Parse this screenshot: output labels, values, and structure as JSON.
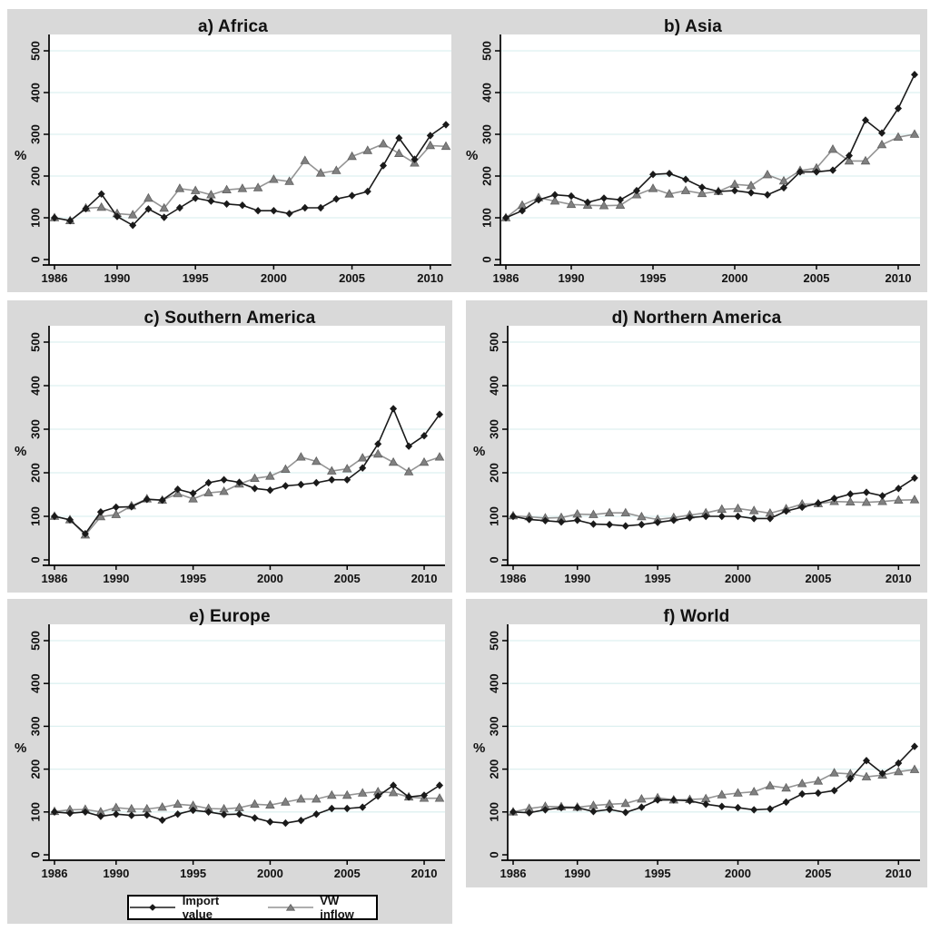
{
  "figure": {
    "ylabel": "%",
    "legend": {
      "items": [
        {
          "label": "Import value",
          "marker": "diamond"
        },
        {
          "label": "VW inflow",
          "marker": "triangle"
        }
      ]
    }
  },
  "style": {
    "page_bg": "#ffffff",
    "panel_bg": "#d9d9d9",
    "plot_bg": "#ffffff",
    "grid_color": "#ddf0f0",
    "axis_color": "#000000",
    "text_color": "#111111",
    "import_color": "#1a1a1a",
    "vw_line_color": "#949494",
    "vw_marker_color": "#808080",
    "vw_marker_edge": "#5f5f5f"
  },
  "axes": {
    "ylabel": "%",
    "ylim": [
      0,
      500
    ],
    "yticks": [
      0,
      100,
      200,
      300,
      400,
      500
    ],
    "xticks": [
      1986,
      1990,
      1995,
      2000,
      2005,
      2010
    ],
    "grid": true
  },
  "years": [
    1986,
    1987,
    1988,
    1989,
    1990,
    1991,
    1992,
    1993,
    1994,
    1995,
    1996,
    1997,
    1998,
    1999,
    2000,
    2001,
    2002,
    2003,
    2004,
    2005,
    2006,
    2007,
    2008,
    2009,
    2010,
    2011
  ],
  "chart_data": [
    {
      "type": "line",
      "title": "a) Africa",
      "xlabel": "",
      "ylabel": "%",
      "series": [
        {
          "name": "Import value",
          "values": [
            100,
            93,
            122,
            157,
            103,
            82,
            121,
            101,
            124,
            147,
            140,
            133,
            130,
            117,
            117,
            110,
            124,
            124,
            145,
            153,
            163,
            225,
            291,
            240,
            297,
            323
          ]
        },
        {
          "name": "VW inflow",
          "values": [
            100,
            93,
            123,
            125,
            110,
            107,
            147,
            123,
            170,
            165,
            155,
            167,
            170,
            172,
            192,
            187,
            237,
            207,
            213,
            247,
            261,
            277,
            254,
            231,
            273,
            271
          ]
        }
      ]
    },
    {
      "type": "line",
      "title": "b) Asia",
      "xlabel": "",
      "ylabel": "%",
      "series": [
        {
          "name": "Import value",
          "values": [
            100,
            117,
            143,
            155,
            152,
            137,
            147,
            143,
            165,
            204,
            206,
            192,
            173,
            163,
            165,
            160,
            155,
            172,
            210,
            210,
            214,
            249,
            334,
            303,
            362,
            443
          ]
        },
        {
          "name": "VW inflow",
          "values": [
            100,
            130,
            148,
            140,
            132,
            130,
            129,
            130,
            155,
            170,
            157,
            165,
            158,
            163,
            180,
            177,
            203,
            188,
            213,
            219,
            264,
            236,
            236,
            275,
            293,
            300
          ]
        }
      ]
    },
    {
      "type": "line",
      "title": "c) Southern America",
      "xlabel": "",
      "ylabel": "%",
      "series": [
        {
          "name": "Import value",
          "values": [
            100,
            92,
            60,
            110,
            121,
            122,
            139,
            137,
            162,
            153,
            177,
            184,
            178,
            164,
            160,
            170,
            173,
            177,
            184,
            184,
            211,
            266,
            347,
            261,
            285,
            334
          ]
        },
        {
          "name": "VW inflow",
          "values": [
            100,
            92,
            57,
            99,
            104,
            124,
            140,
            137,
            152,
            140,
            154,
            157,
            174,
            187,
            192,
            208,
            236,
            226,
            204,
            209,
            234,
            243,
            224,
            202,
            224,
            236
          ]
        }
      ]
    },
    {
      "type": "line",
      "title": "d) Northern America",
      "xlabel": "",
      "ylabel": "%",
      "series": [
        {
          "name": "Import value",
          "values": [
            100,
            93,
            90,
            87,
            91,
            82,
            81,
            78,
            81,
            86,
            91,
            97,
            100,
            100,
            100,
            95,
            95,
            112,
            121,
            130,
            141,
            151,
            155,
            147,
            164,
            188
          ]
        },
        {
          "name": "VW inflow",
          "values": [
            101,
            99,
            96,
            97,
            105,
            104,
            108,
            108,
            99,
            93,
            97,
            103,
            108,
            116,
            118,
            113,
            107,
            117,
            128,
            129,
            134,
            133,
            132,
            134,
            137,
            138
          ]
        }
      ]
    },
    {
      "type": "line",
      "title": "e) Europe",
      "xlabel": "",
      "ylabel": "%",
      "series": [
        {
          "name": "Import value",
          "values": [
            100,
            97,
            100,
            90,
            95,
            92,
            93,
            81,
            95,
            104,
            100,
            94,
            95,
            86,
            77,
            74,
            80,
            95,
            108,
            108,
            111,
            137,
            162,
            135,
            139,
            162
          ]
        },
        {
          "name": "VW inflow",
          "values": [
            101,
            105,
            106,
            100,
            110,
            107,
            107,
            111,
            118,
            115,
            108,
            107,
            110,
            118,
            116,
            123,
            130,
            130,
            139,
            139,
            144,
            147,
            145,
            135,
            132,
            132
          ]
        }
      ]
    },
    {
      "type": "line",
      "title": "f) World",
      "xlabel": "",
      "ylabel": "%",
      "series": [
        {
          "name": "Import value",
          "values": [
            100,
            98,
            105,
            110,
            110,
            101,
            106,
            99,
            111,
            128,
            128,
            126,
            118,
            113,
            110,
            105,
            107,
            123,
            142,
            144,
            150,
            178,
            220,
            190,
            214,
            253
          ]
        },
        {
          "name": "VW inflow",
          "values": [
            100,
            108,
            113,
            112,
            111,
            115,
            118,
            120,
            130,
            133,
            128,
            129,
            131,
            140,
            144,
            147,
            161,
            156,
            166,
            172,
            191,
            189,
            182,
            186,
            194,
            199
          ]
        }
      ]
    }
  ]
}
